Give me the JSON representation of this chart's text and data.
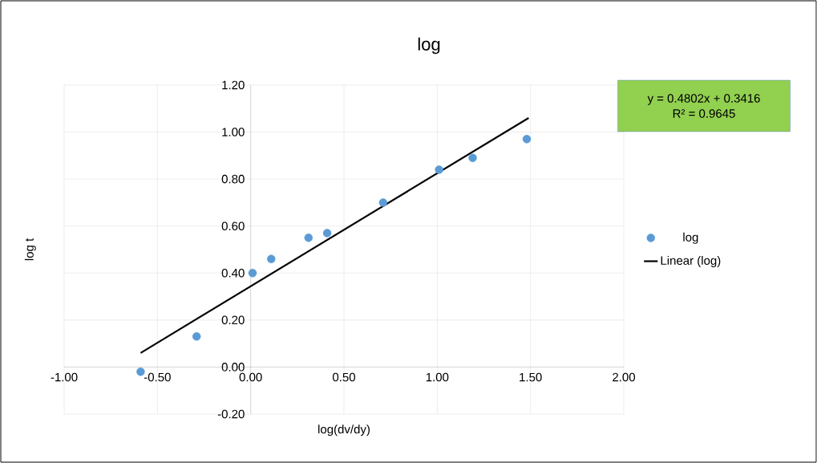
{
  "chart_data": {
    "type": "scatter",
    "title": "log",
    "xlabel": "log(dv/dy)",
    "ylabel": "log t",
    "series": [
      {
        "name": "log",
        "color": "#5b9bd5",
        "marker": "circle",
        "x": [
          -0.59,
          -0.29,
          0.01,
          0.11,
          0.31,
          0.41,
          0.71,
          1.01,
          1.19,
          1.48
        ],
        "values": [
          -0.02,
          0.13,
          0.4,
          0.46,
          0.55,
          0.57,
          0.7,
          0.84,
          0.89,
          0.97
        ]
      },
      {
        "name": "Linear (log)",
        "type": "line",
        "color": "#000000",
        "marker": "none",
        "line_style": "solid",
        "x": [
          -0.59,
          1.49
        ],
        "values": [
          0.06,
          1.06
        ]
      }
    ],
    "xlim": [
      -1,
      2
    ],
    "ylim": [
      -0.2,
      1.2
    ],
    "xticks": [
      {
        "value": -1,
        "label": "-1.00"
      },
      {
        "value": -0.5,
        "label": "-0.50"
      },
      {
        "value": 0,
        "label": "0.00"
      },
      {
        "value": 0.5,
        "label": "0.50"
      },
      {
        "value": 1,
        "label": "1.00"
      },
      {
        "value": 1.5,
        "label": "1.50"
      },
      {
        "value": 2,
        "label": "2.00"
      }
    ],
    "yticks": [
      {
        "value": -0.2,
        "label": "-0.20"
      },
      {
        "value": 0,
        "label": "0.00"
      },
      {
        "value": 0.2,
        "label": "0.20"
      },
      {
        "value": 0.4,
        "label": "0.40"
      },
      {
        "value": 0.6,
        "label": "0.60"
      },
      {
        "value": 0.8,
        "label": "0.80"
      },
      {
        "value": 1,
        "label": "1.00"
      },
      {
        "value": 1.2,
        "label": "1.20"
      }
    ],
    "grid": true,
    "legend": "right",
    "annotations": [
      "y = 0.4802x + 0.3416",
      "R² = 0.9645"
    ]
  }
}
